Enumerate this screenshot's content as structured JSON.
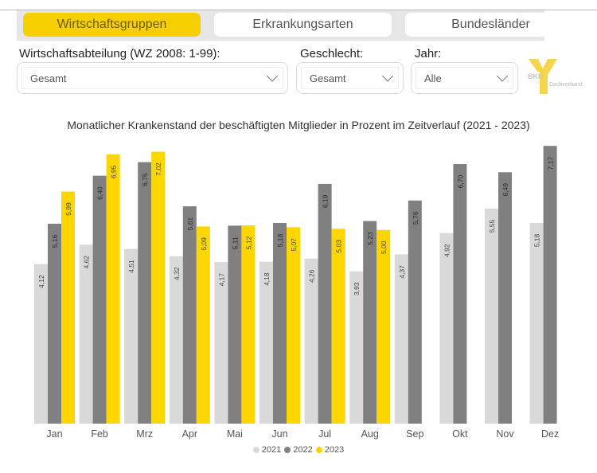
{
  "tabs": [
    {
      "label": "Wirtschaftsgruppen",
      "active": true
    },
    {
      "label": "Erkrankungsarten",
      "active": false
    },
    {
      "label": "Bundesländer",
      "active": false
    }
  ],
  "filters": {
    "wirtschaft": {
      "label": "Wirtschaftsabteilung (WZ 2008: 1-99):",
      "value": "Gesamt"
    },
    "geschlecht": {
      "label": "Geschlecht:",
      "value": "Gesamt"
    },
    "jahr": {
      "label": "Jahr:",
      "value": "Alle"
    }
  },
  "logo": {
    "brand": "BKK",
    "sub": "Dachverband",
    "color": "#f5cf00"
  },
  "colors": {
    "s2021": "#d9d9d9",
    "s2022": "#808080",
    "s2023": "#fdd600",
    "tab_active": "#f5cf00"
  },
  "chart_data": {
    "type": "bar",
    "title": "Monatlicher Krankenstand der beschäftigten Mitglieder in Prozent im Zeitverlauf (2021 - 2023)",
    "xlabel": "",
    "ylabel": "",
    "ylim": [
      0,
      7.4
    ],
    "grid": false,
    "legend": "bottom-center",
    "categories": [
      "Jan",
      "Feb",
      "Mrz",
      "Apr",
      "Mai",
      "Jun",
      "Jul",
      "Aug",
      "Sep",
      "Okt",
      "Nov",
      "Dez"
    ],
    "series": [
      {
        "name": "2021",
        "color": "#d9d9d9",
        "values": [
          4.12,
          4.62,
          4.51,
          4.32,
          4.17,
          4.18,
          4.26,
          3.93,
          4.37,
          4.92,
          5.55,
          5.18
        ],
        "labels": [
          "4,12",
          "4,62",
          "4,51",
          "4,32",
          "4,17",
          "4,18",
          "4,26",
          "3,93",
          "4,37",
          "4,92",
          "5,55",
          "5,18"
        ]
      },
      {
        "name": "2022",
        "color": "#808080",
        "values": [
          5.16,
          6.4,
          6.75,
          5.61,
          5.11,
          5.18,
          6.19,
          5.23,
          5.76,
          6.7,
          6.49,
          7.17
        ],
        "labels": [
          "5,16",
          "6,40",
          "6,75",
          "5,61",
          "5,11",
          "5,18",
          "6,19",
          "5,23",
          "5,76",
          "6,70",
          "6,49",
          "7,17"
        ]
      },
      {
        "name": "2023",
        "color": "#fdd600",
        "values": [
          5.99,
          6.95,
          7.02,
          5.09,
          5.12,
          5.07,
          5.03,
          5.0,
          null,
          null,
          null,
          null
        ],
        "labels": [
          "5,99",
          "6,95",
          "7,02",
          "5,09",
          "5,12",
          "5,07",
          "5,03",
          "5,00",
          null,
          null,
          null,
          null
        ]
      }
    ]
  }
}
